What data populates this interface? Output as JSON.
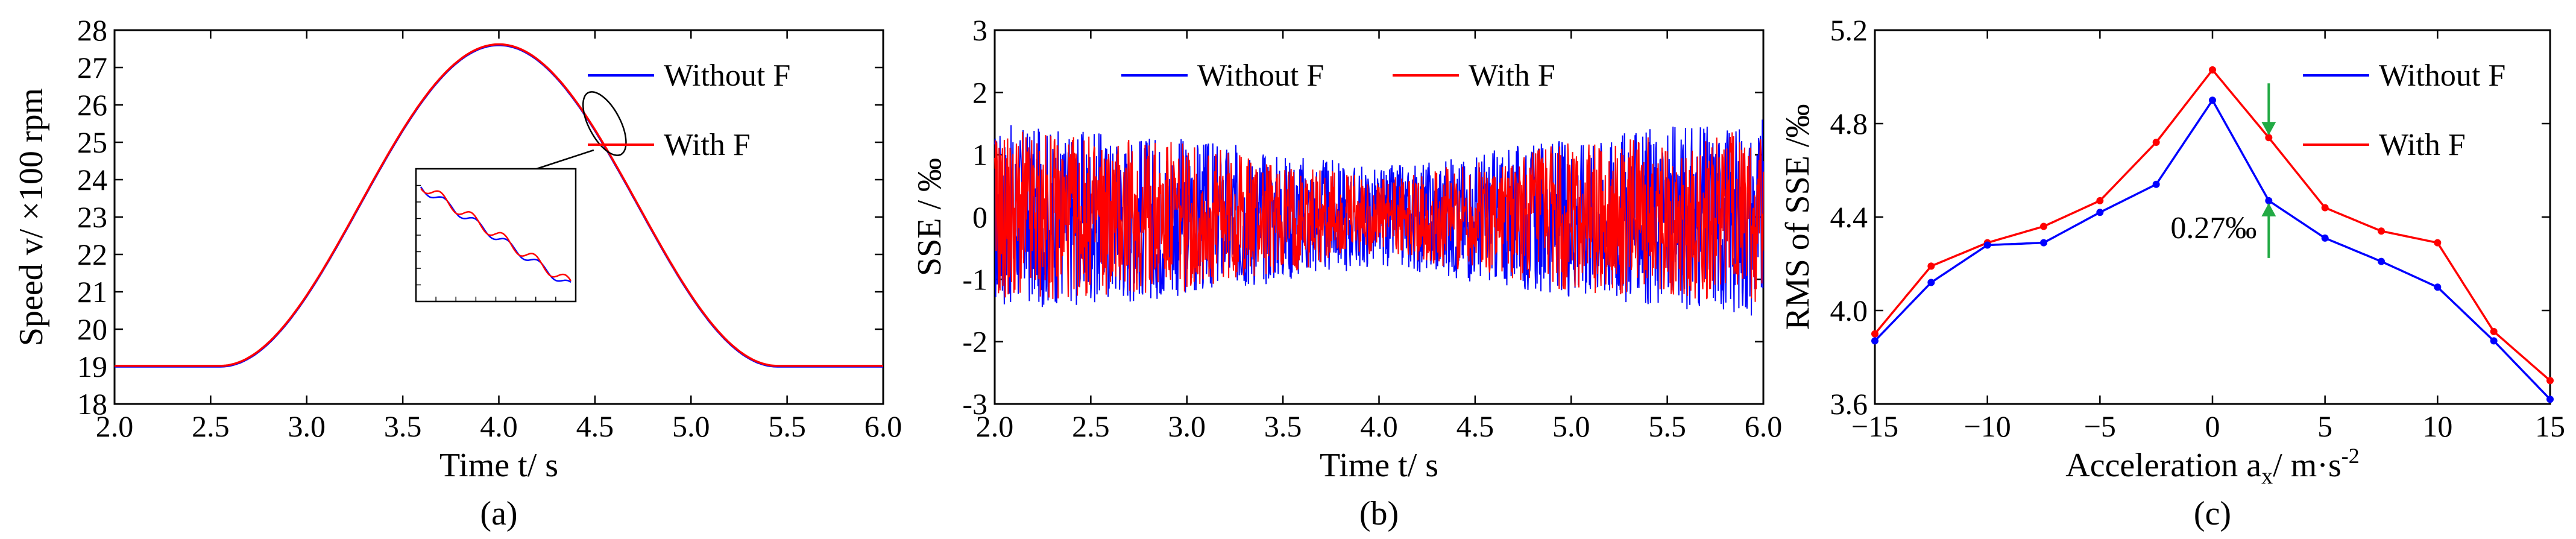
{
  "colors": {
    "without": "#0000ff",
    "with": "#ff0000",
    "annotation": "#22aa44",
    "axis": "#000000"
  },
  "chart_data": [
    {
      "type": "line",
      "panel_label": "(a)",
      "xlabel": "Time t/ s",
      "ylabel": "Speed v/ ×100 rpm",
      "xlim": [
        2.0,
        6.0
      ],
      "ylim": [
        18,
        28
      ],
      "xticks": [
        "2.0",
        "2.5",
        "3.0",
        "3.5",
        "4.0",
        "4.5",
        "5.0",
        "5.5",
        "6.0"
      ],
      "yticks": [
        "18",
        "19",
        "20",
        "21",
        "22",
        "23",
        "24",
        "25",
        "26",
        "27",
        "28"
      ],
      "legend": {
        "position": "top-right",
        "entries": [
          "Without F",
          "With F"
        ]
      },
      "series": [
        {
          "name": "Without F",
          "x": [
            2.0,
            2.5,
            2.6,
            3.0,
            3.5,
            4.0,
            4.5,
            5.0,
            5.4,
            5.5,
            6.0
          ],
          "values": [
            19.0,
            19.0,
            19.2,
            21.8,
            25.8,
            27.6,
            25.8,
            21.9,
            19.3,
            19.0,
            19.0
          ]
        },
        {
          "name": "With F",
          "x": [
            2.0,
            2.5,
            2.6,
            3.0,
            3.5,
            4.0,
            4.5,
            5.0,
            5.4,
            5.5,
            6.0
          ],
          "values": [
            19.0,
            19.0,
            19.2,
            21.8,
            25.8,
            27.6,
            25.8,
            21.9,
            19.3,
            19.0,
            19.0
          ]
        }
      ],
      "annotation": "inset zoom of region near t = 4.5 s"
    },
    {
      "type": "line",
      "panel_label": "(b)",
      "xlabel": "Time t/ s",
      "ylabel": "SSE / ‰",
      "xlim": [
        2.0,
        6.0
      ],
      "ylim": [
        -3,
        3
      ],
      "xticks": [
        "2.0",
        "2.5",
        "3.0",
        "3.5",
        "4.0",
        "4.5",
        "5.0",
        "5.5",
        "6.0"
      ],
      "yticks": [
        "-3",
        "-2",
        "-1",
        "0",
        "1",
        "2",
        "3"
      ],
      "legend": {
        "position": "top",
        "entries": [
          "Without F",
          "With F"
        ]
      },
      "series": [
        {
          "name": "Without F",
          "x": [
            2.0,
            3.0,
            4.0,
            5.0,
            6.0
          ],
          "envelope_max": [
            1.5,
            1.3,
            0.8,
            1.3,
            1.6
          ],
          "envelope_min": [
            -1.5,
            -1.3,
            -0.8,
            -1.3,
            -1.6
          ]
        },
        {
          "name": "With F",
          "x": [
            2.0,
            3.0,
            4.0,
            5.0,
            6.0
          ],
          "envelope_max": [
            1.4,
            1.2,
            0.6,
            1.2,
            1.4
          ],
          "envelope_min": [
            -1.4,
            -1.2,
            -0.6,
            -1.2,
            -1.4
          ]
        }
      ]
    },
    {
      "type": "line",
      "panel_label": "(c)",
      "xlabel": "Acceleration a",
      "xlabel_sub": "x",
      "xlabel_unit": "/ m·s",
      "xlabel_sup": "-2",
      "ylabel": "RMS of SSE /‰",
      "xlim": [
        -15,
        15
      ],
      "ylim": [
        3.6,
        5.2
      ],
      "xticks": [
        "−15",
        "−10",
        "−5",
        "0",
        "5",
        "10",
        "15"
      ],
      "yticks": [
        "3.6",
        "4.0",
        "4.4",
        "4.8",
        "5.2"
      ],
      "legend": {
        "position": "top-right",
        "entries": [
          "Without F",
          "With F"
        ]
      },
      "categories": [
        -15,
        -12.5,
        -10,
        -7.5,
        -5,
        -2.5,
        0,
        2.5,
        5,
        7.5,
        10,
        12.5,
        15
      ],
      "series": [
        {
          "name": "Without F",
          "values": [
            3.87,
            4.12,
            4.28,
            4.29,
            4.42,
            4.54,
            4.9,
            4.47,
            4.31,
            4.21,
            4.1,
            3.87,
            3.62
          ]
        },
        {
          "name": "With F",
          "values": [
            3.9,
            4.19,
            4.29,
            4.36,
            4.47,
            4.72,
            5.03,
            4.74,
            4.44,
            4.34,
            4.29,
            3.91,
            3.7
          ]
        }
      ],
      "annotation": "0.27‰"
    }
  ]
}
